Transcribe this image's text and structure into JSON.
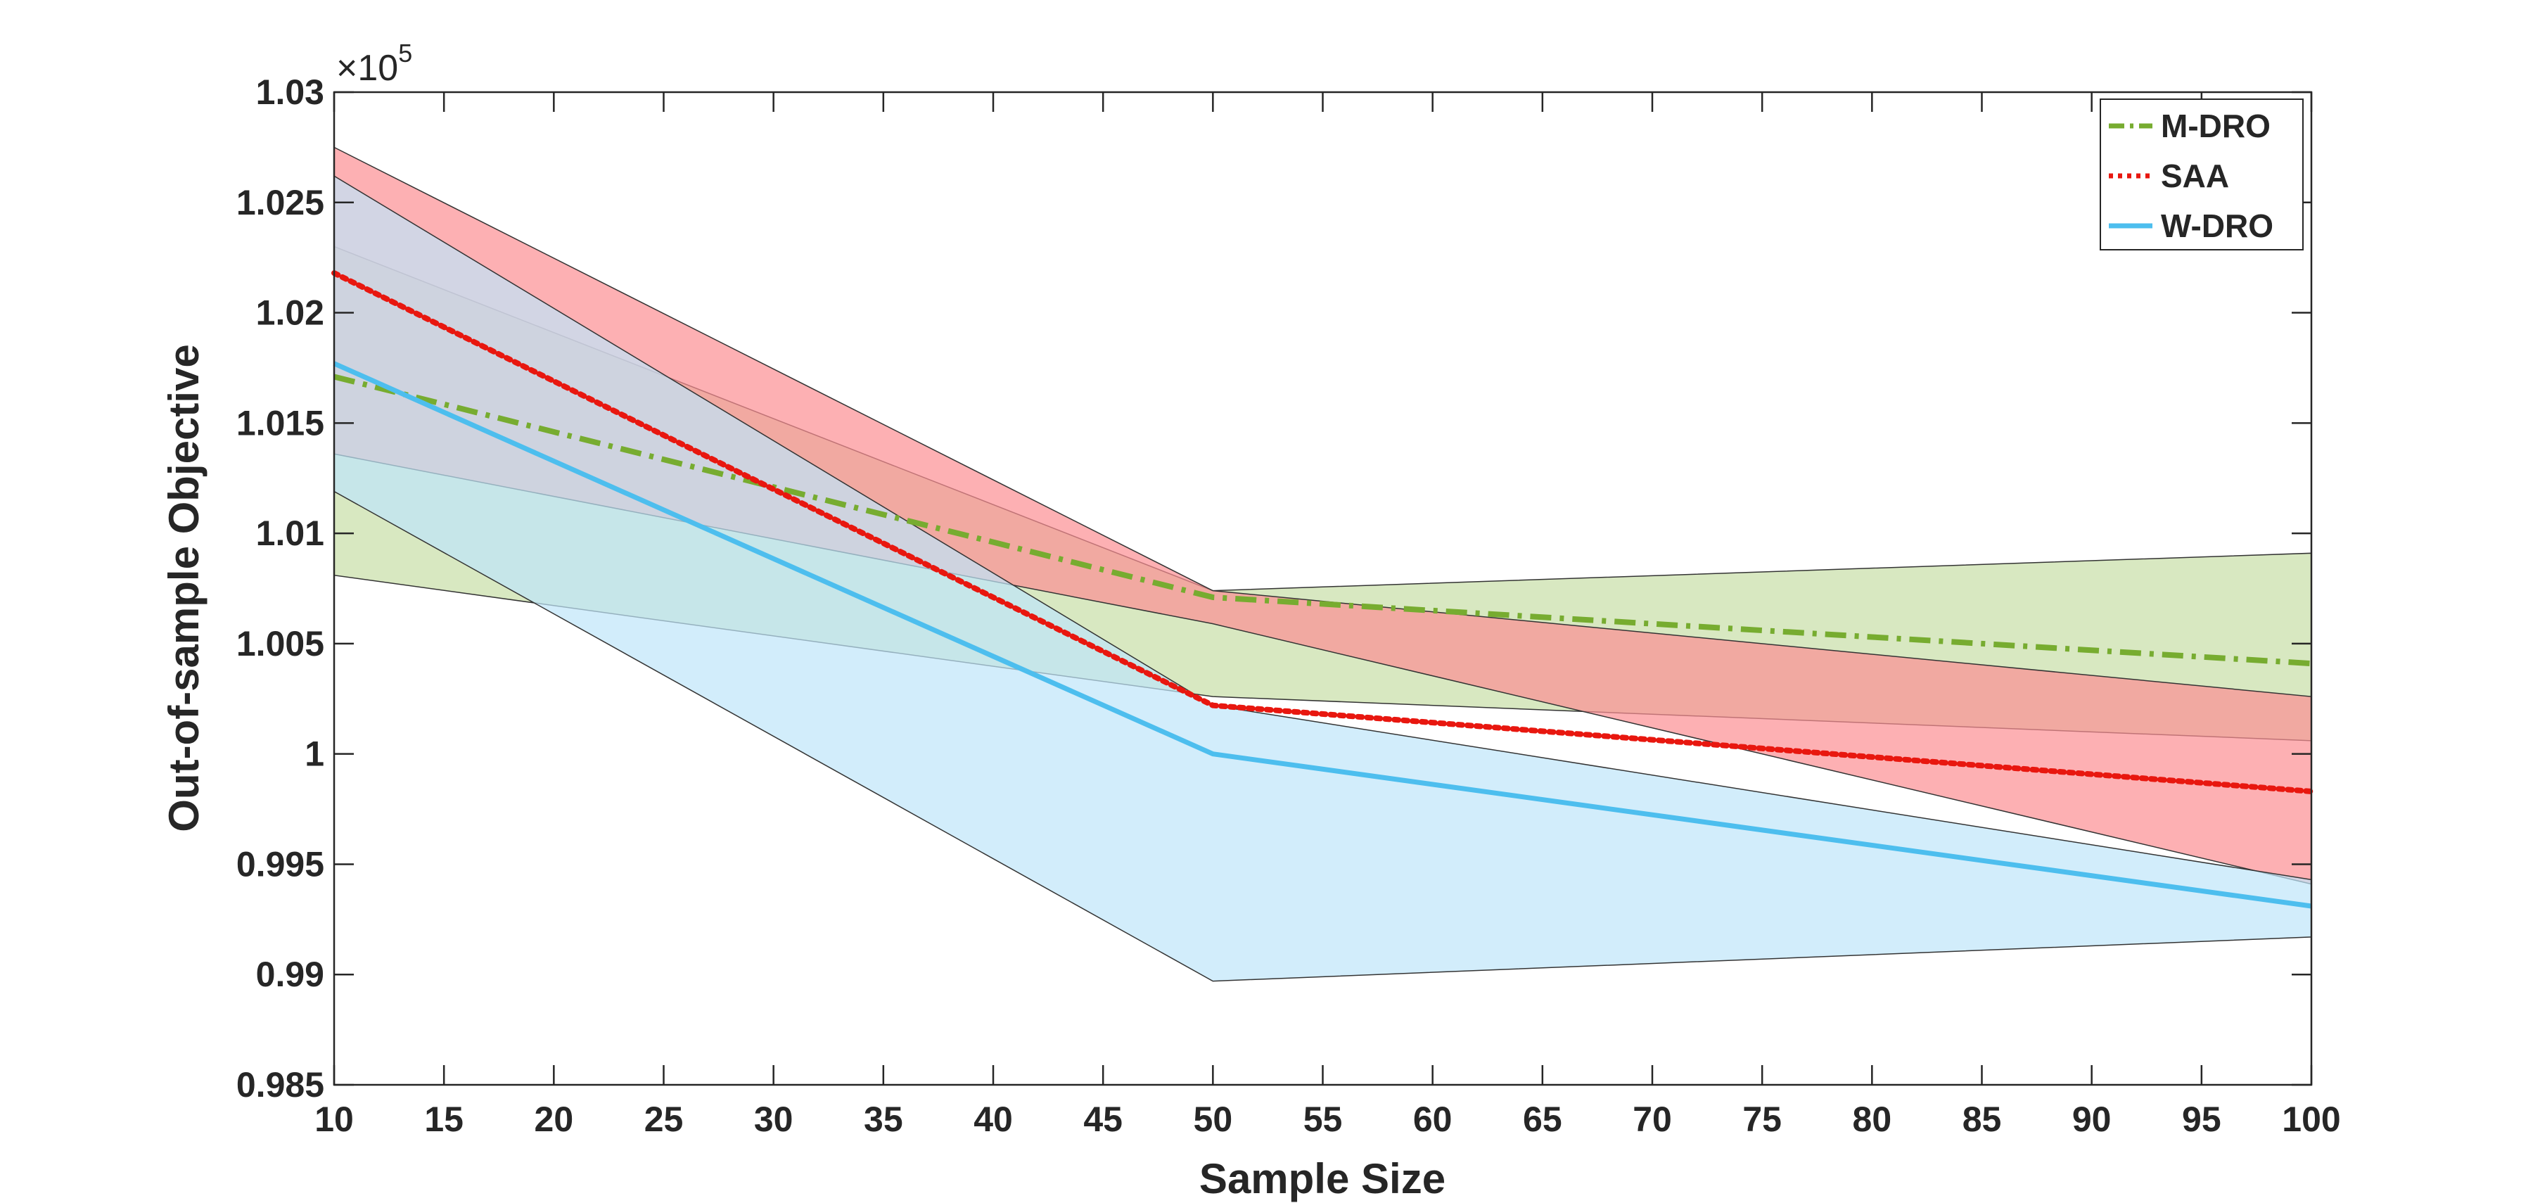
{
  "chart_data": {
    "type": "line",
    "title": "",
    "xlabel": "Sample Size",
    "ylabel": "Out-of-sample Objective",
    "xlim": [
      10,
      100
    ],
    "ylim": [
      0.985,
      1.03
    ],
    "y_multiplier_label": "×10",
    "y_multiplier_exponent": "5",
    "xticks": [
      10,
      15,
      20,
      25,
      30,
      35,
      40,
      45,
      50,
      55,
      60,
      65,
      70,
      75,
      80,
      85,
      90,
      95,
      100
    ],
    "xtick_labels": [
      "10",
      "15",
      "20",
      "25",
      "30",
      "35",
      "40",
      "45",
      "50",
      "55",
      "60",
      "65",
      "70",
      "75",
      "80",
      "85",
      "90",
      "95",
      "100"
    ],
    "yticks": [
      0.985,
      0.99,
      0.995,
      1.0,
      1.005,
      1.01,
      1.015,
      1.02,
      1.025,
      1.03
    ],
    "ytick_labels": [
      "0.985",
      "0.99",
      "0.995",
      "1",
      "1.005",
      "1.01",
      "1.015",
      "1.02",
      "1.025",
      "1.03"
    ],
    "x": [
      10,
      50,
      100
    ],
    "legend_position": "top-right",
    "series": [
      {
        "name": "M-DRO",
        "color": "#77AC30",
        "fill": "#c8dea6",
        "style": "dashdot",
        "values": [
          1.0171,
          1.0071,
          1.0041
        ],
        "band_upper": [
          1.023,
          1.0074,
          1.0091
        ],
        "band_lower": [
          1.0081,
          1.0026,
          1.0006
        ]
      },
      {
        "name": "SAA",
        "color": "#e8170f",
        "fill": "#fc8f93",
        "style": "dotted",
        "values": [
          1.0218,
          1.0022,
          0.9983
        ],
        "band_upper": [
          1.0275,
          1.0074,
          1.0026
        ],
        "band_lower": [
          1.0136,
          1.0059,
          0.9941
        ]
      },
      {
        "name": "W-DRO",
        "color": "#4DBEEE",
        "fill": "#bfe6fa",
        "style": "solid",
        "values": [
          1.0177,
          1.0,
          0.9931
        ],
        "band_upper": [
          1.0262,
          1.0022,
          0.9943
        ],
        "band_lower": [
          1.0119,
          0.9897,
          0.9917
        ]
      }
    ]
  }
}
